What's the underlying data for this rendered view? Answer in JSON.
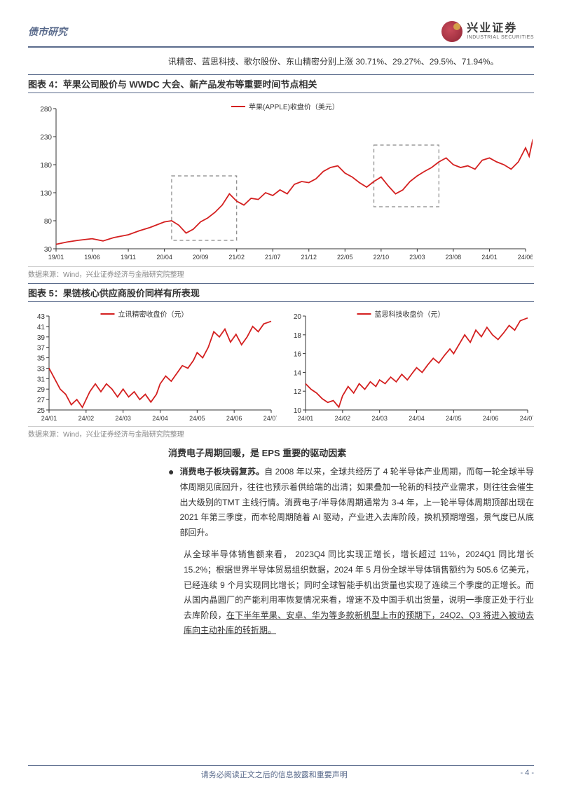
{
  "header": {
    "category": "债市研究",
    "logo_cn": "兴业证券",
    "logo_en": "INDUSTRIAL SECURITIES"
  },
  "intro": "讯精密、蓝思科技、歌尔股份、东山精密分别上涨 30.71%、29.27%、29.5%、71.94%。",
  "chart4": {
    "title": "图表 4：苹果公司股价与 WWDC 大会、新产品发布等重要时间节点相关",
    "legend": "苹果(APPLE)收盘价（美元）",
    "source": "数据来源：Wind，兴业证券经济与金融研究院整理",
    "line_color": "#d42020",
    "grid_color": "#cccccc",
    "box_dash_color": "#888888",
    "x_labels": [
      "19/01",
      "19/06",
      "19/11",
      "20/04",
      "20/09",
      "21/02",
      "21/07",
      "21/12",
      "22/05",
      "22/10",
      "23/03",
      "23/08",
      "24/01",
      "24/06"
    ],
    "y_labels": [
      30,
      80,
      130,
      180,
      230,
      280
    ],
    "ylim": [
      30,
      280
    ],
    "boxes": [
      {
        "x_start": 3.2,
        "x_end": 5.0,
        "y_start": 45,
        "y_end": 160
      },
      {
        "x_start": 8.8,
        "x_end": 10.6,
        "y_start": 105,
        "y_end": 215
      }
    ],
    "data": [
      {
        "x": 0.0,
        "y": 38
      },
      {
        "x": 0.3,
        "y": 42
      },
      {
        "x": 0.6,
        "y": 45
      },
      {
        "x": 1.0,
        "y": 48
      },
      {
        "x": 1.3,
        "y": 44
      },
      {
        "x": 1.6,
        "y": 50
      },
      {
        "x": 2.0,
        "y": 55
      },
      {
        "x": 2.3,
        "y": 62
      },
      {
        "x": 2.6,
        "y": 68
      },
      {
        "x": 3.0,
        "y": 78
      },
      {
        "x": 3.2,
        "y": 80
      },
      {
        "x": 3.4,
        "y": 72
      },
      {
        "x": 3.6,
        "y": 58
      },
      {
        "x": 3.8,
        "y": 65
      },
      {
        "x": 4.0,
        "y": 78
      },
      {
        "x": 4.2,
        "y": 85
      },
      {
        "x": 4.4,
        "y": 95
      },
      {
        "x": 4.6,
        "y": 108
      },
      {
        "x": 4.8,
        "y": 128
      },
      {
        "x": 5.0,
        "y": 115
      },
      {
        "x": 5.2,
        "y": 108
      },
      {
        "x": 5.4,
        "y": 120
      },
      {
        "x": 5.6,
        "y": 118
      },
      {
        "x": 5.8,
        "y": 130
      },
      {
        "x": 6.0,
        "y": 125
      },
      {
        "x": 6.2,
        "y": 135
      },
      {
        "x": 6.4,
        "y": 128
      },
      {
        "x": 6.6,
        "y": 145
      },
      {
        "x": 6.8,
        "y": 150
      },
      {
        "x": 7.0,
        "y": 148
      },
      {
        "x": 7.2,
        "y": 155
      },
      {
        "x": 7.4,
        "y": 168
      },
      {
        "x": 7.6,
        "y": 175
      },
      {
        "x": 7.8,
        "y": 178
      },
      {
        "x": 8.0,
        "y": 165
      },
      {
        "x": 8.2,
        "y": 158
      },
      {
        "x": 8.4,
        "y": 148
      },
      {
        "x": 8.6,
        "y": 140
      },
      {
        "x": 8.8,
        "y": 150
      },
      {
        "x": 9.0,
        "y": 158
      },
      {
        "x": 9.2,
        "y": 142
      },
      {
        "x": 9.4,
        "y": 128
      },
      {
        "x": 9.6,
        "y": 135
      },
      {
        "x": 9.8,
        "y": 150
      },
      {
        "x": 10.0,
        "y": 160
      },
      {
        "x": 10.2,
        "y": 168
      },
      {
        "x": 10.4,
        "y": 175
      },
      {
        "x": 10.6,
        "y": 185
      },
      {
        "x": 10.8,
        "y": 192
      },
      {
        "x": 11.0,
        "y": 180
      },
      {
        "x": 11.2,
        "y": 175
      },
      {
        "x": 11.4,
        "y": 178
      },
      {
        "x": 11.6,
        "y": 172
      },
      {
        "x": 11.8,
        "y": 188
      },
      {
        "x": 12.0,
        "y": 192
      },
      {
        "x": 12.2,
        "y": 185
      },
      {
        "x": 12.4,
        "y": 180
      },
      {
        "x": 12.6,
        "y": 172
      },
      {
        "x": 12.8,
        "y": 185
      },
      {
        "x": 13.0,
        "y": 210
      },
      {
        "x": 13.1,
        "y": 195
      },
      {
        "x": 13.2,
        "y": 225
      },
      {
        "x": 13.3,
        "y": 232
      }
    ]
  },
  "chart5": {
    "title": "图表 5：果链核心供应商股价同样有所表现",
    "source": "数据来源：Wind，兴业证券经济与金融研究院整理",
    "line_color": "#d42020",
    "left": {
      "legend": "立讯精密收盘价（元）",
      "x_labels": [
        "24/01",
        "24/02",
        "24/03",
        "24/04",
        "24/05",
        "24/06",
        "24/07"
      ],
      "y_labels": [
        25,
        27,
        29,
        31,
        33,
        35,
        37,
        39,
        41,
        43
      ],
      "ylim": [
        25,
        43
      ],
      "data": [
        {
          "x": 0.0,
          "y": 33
        },
        {
          "x": 0.15,
          "y": 31
        },
        {
          "x": 0.3,
          "y": 29
        },
        {
          "x": 0.45,
          "y": 28
        },
        {
          "x": 0.6,
          "y": 26
        },
        {
          "x": 0.75,
          "y": 27
        },
        {
          "x": 0.9,
          "y": 25.5
        },
        {
          "x": 1.0,
          "y": 27
        },
        {
          "x": 1.1,
          "y": 28.5
        },
        {
          "x": 1.25,
          "y": 30
        },
        {
          "x": 1.4,
          "y": 28.5
        },
        {
          "x": 1.55,
          "y": 30
        },
        {
          "x": 1.7,
          "y": 29
        },
        {
          "x": 1.85,
          "y": 27.5
        },
        {
          "x": 2.0,
          "y": 29
        },
        {
          "x": 2.15,
          "y": 27.5
        },
        {
          "x": 2.3,
          "y": 28.5
        },
        {
          "x": 2.45,
          "y": 27
        },
        {
          "x": 2.6,
          "y": 28
        },
        {
          "x": 2.75,
          "y": 26.5
        },
        {
          "x": 2.9,
          "y": 28
        },
        {
          "x": 3.0,
          "y": 30
        },
        {
          "x": 3.15,
          "y": 31.5
        },
        {
          "x": 3.3,
          "y": 30.5
        },
        {
          "x": 3.45,
          "y": 32
        },
        {
          "x": 3.6,
          "y": 33.5
        },
        {
          "x": 3.75,
          "y": 33
        },
        {
          "x": 3.9,
          "y": 34.5
        },
        {
          "x": 4.0,
          "y": 36
        },
        {
          "x": 4.15,
          "y": 35
        },
        {
          "x": 4.3,
          "y": 37
        },
        {
          "x": 4.45,
          "y": 40
        },
        {
          "x": 4.6,
          "y": 39
        },
        {
          "x": 4.75,
          "y": 40.5
        },
        {
          "x": 4.9,
          "y": 38
        },
        {
          "x": 5.05,
          "y": 39.5
        },
        {
          "x": 5.2,
          "y": 37.5
        },
        {
          "x": 5.35,
          "y": 39
        },
        {
          "x": 5.5,
          "y": 41
        },
        {
          "x": 5.65,
          "y": 40
        },
        {
          "x": 5.8,
          "y": 41.5
        },
        {
          "x": 6.0,
          "y": 42
        }
      ]
    },
    "right": {
      "legend": "蓝思科技收盘价（元）",
      "x_labels": [
        "24/01",
        "24/02",
        "24/03",
        "24/04",
        "24/05",
        "24/06",
        "24/07"
      ],
      "y_labels": [
        10,
        12,
        14,
        16,
        18,
        20
      ],
      "ylim": [
        10,
        20
      ],
      "data": [
        {
          "x": 0.0,
          "y": 12.8
        },
        {
          "x": 0.15,
          "y": 12.2
        },
        {
          "x": 0.3,
          "y": 11.8
        },
        {
          "x": 0.45,
          "y": 11.2
        },
        {
          "x": 0.6,
          "y": 10.8
        },
        {
          "x": 0.75,
          "y": 11.0
        },
        {
          "x": 0.9,
          "y": 10.3
        },
        {
          "x": 1.0,
          "y": 11.5
        },
        {
          "x": 1.15,
          "y": 12.5
        },
        {
          "x": 1.3,
          "y": 11.8
        },
        {
          "x": 1.45,
          "y": 12.8
        },
        {
          "x": 1.6,
          "y": 12.2
        },
        {
          "x": 1.75,
          "y": 13.0
        },
        {
          "x": 1.9,
          "y": 12.5
        },
        {
          "x": 2.0,
          "y": 13.2
        },
        {
          "x": 2.15,
          "y": 12.8
        },
        {
          "x": 2.3,
          "y": 13.5
        },
        {
          "x": 2.45,
          "y": 13.0
        },
        {
          "x": 2.6,
          "y": 13.8
        },
        {
          "x": 2.75,
          "y": 13.2
        },
        {
          "x": 2.9,
          "y": 14.0
        },
        {
          "x": 3.0,
          "y": 14.5
        },
        {
          "x": 3.15,
          "y": 14.0
        },
        {
          "x": 3.3,
          "y": 14.8
        },
        {
          "x": 3.45,
          "y": 15.5
        },
        {
          "x": 3.6,
          "y": 15.0
        },
        {
          "x": 3.75,
          "y": 15.8
        },
        {
          "x": 3.9,
          "y": 16.5
        },
        {
          "x": 4.0,
          "y": 16.0
        },
        {
          "x": 4.15,
          "y": 17.0
        },
        {
          "x": 4.3,
          "y": 18.0
        },
        {
          "x": 4.45,
          "y": 17.2
        },
        {
          "x": 4.6,
          "y": 18.5
        },
        {
          "x": 4.75,
          "y": 17.8
        },
        {
          "x": 4.9,
          "y": 18.8
        },
        {
          "x": 5.05,
          "y": 18.0
        },
        {
          "x": 5.2,
          "y": 17.5
        },
        {
          "x": 5.35,
          "y": 18.2
        },
        {
          "x": 5.5,
          "y": 19.0
        },
        {
          "x": 5.65,
          "y": 18.5
        },
        {
          "x": 5.8,
          "y": 19.5
        },
        {
          "x": 6.0,
          "y": 19.8
        }
      ]
    }
  },
  "body": {
    "heading": "消费电子周期回暖，是 EPS 重要的驱动因素",
    "bullet_lead": "消费电子板块弱复苏。",
    "para1": "自 2008 年以来，全球共经历了 4 轮半导体产业周期，而每一轮全球半导体周期见底回升，往往也预示着供给端的出清；如果叠加一轮新的科技产业需求，则往往会催生出大级别的TMT 主线行情。消费电子/半导体周期通常为 3-4 年，上一轮半导体周期顶部出现在 2021 年第三季度，而本轮周期随着 AI 驱动，产业进入去库阶段，换机预期增强，景气度已从底部回升。",
    "para2_a": "从全球半导体销售额来看， 2023Q4 同比实现正增长，增长超过 11%，2024Q1 同比增长 15.2%；根据世界半导体贸易组织数据，2024 年 5 月份全球半导体销售额约为 505.6 亿美元，已经连续 9 个月实现同比增长；同时全球智能手机出货量也实现了连续三个季度的正增长。而从国内晶圆厂的产能利用率恢复情况来看，增速不及中国手机出货量，说明一季度正处于行业去库阶段，",
    "para2_underline": "在下半年苹果、安卓、华为等多款新机型上市的预期下，24Q2、Q3 将进入被动去库向主动补库的转折期。"
  },
  "footer": {
    "center": "请务必阅读正文之后的信息披露和重要声明",
    "page": "- 4 -"
  }
}
